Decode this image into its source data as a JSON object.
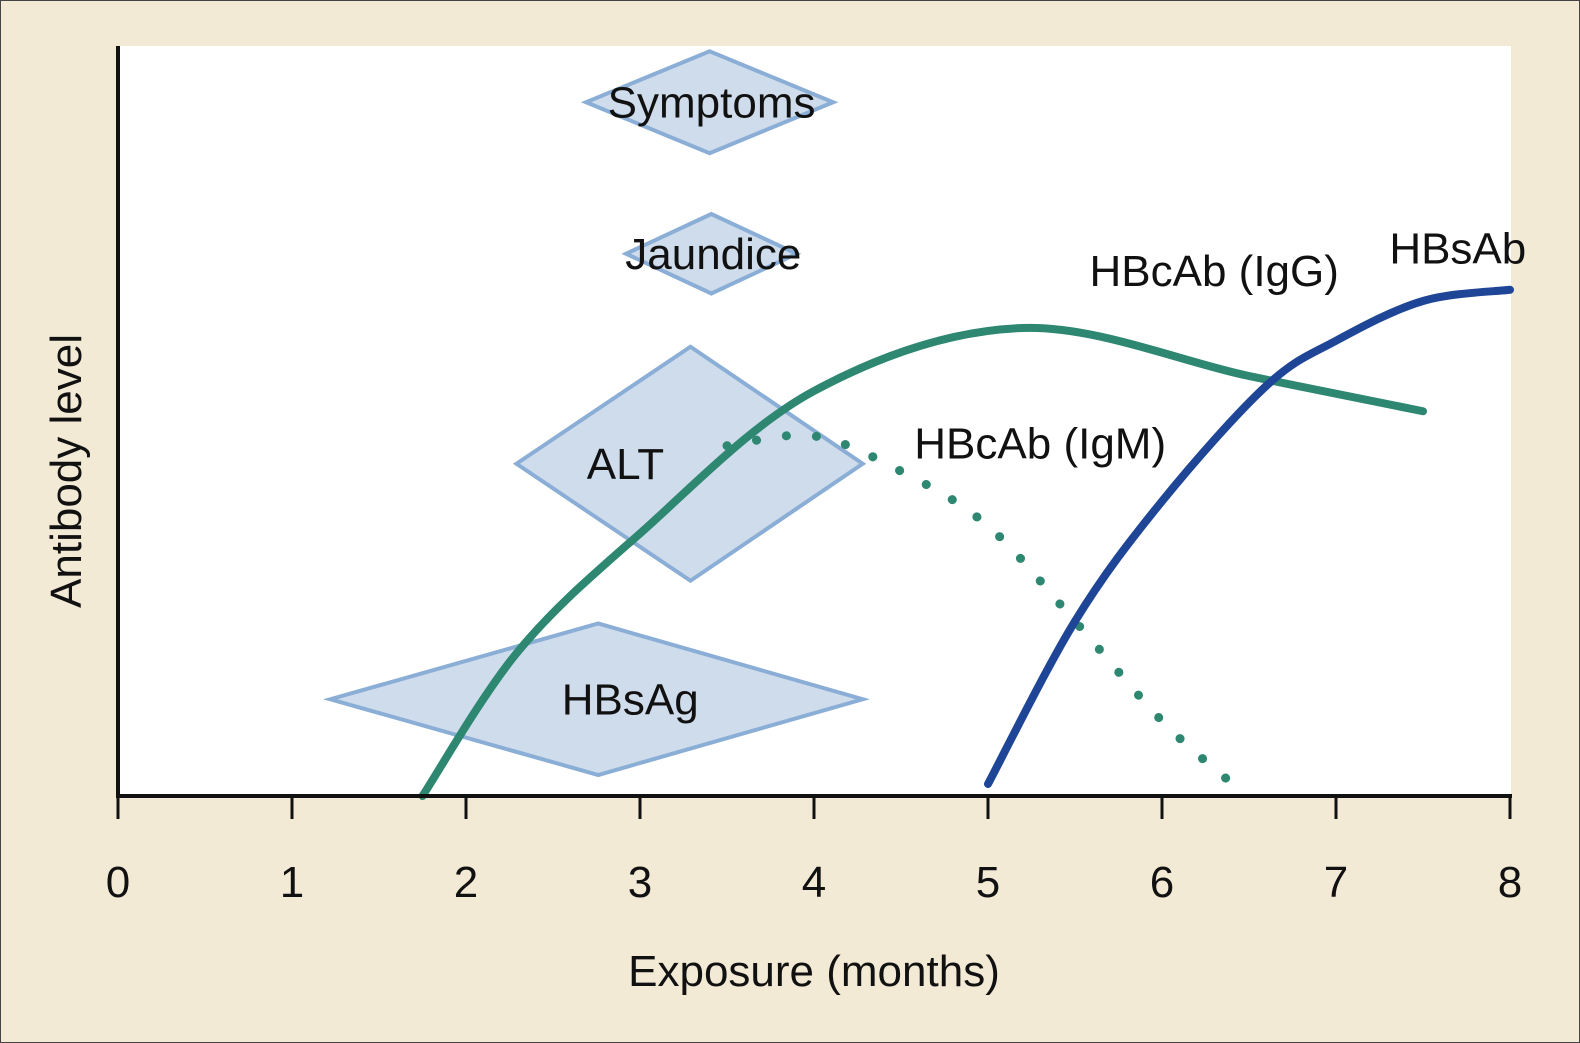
{
  "chart_data": {
    "type": "line",
    "title": "",
    "xlabel": "Exposure (months)",
    "ylabel": "Antibody level",
    "xlim": [
      0,
      8
    ],
    "ylim": [
      0,
      100
    ],
    "x_ticks": [
      "0",
      "1",
      "2",
      "3",
      "4",
      "5",
      "6",
      "7",
      "8"
    ],
    "grid": false,
    "colors": {
      "igg": "#2e8770",
      "igm": "#2e8770",
      "hbsab": "#1f4696",
      "marker_fill": "#cfdcec",
      "marker_stroke": "#8aaed6",
      "background": "#f3ead6"
    },
    "series": [
      {
        "name": "HBcAb (IgG)",
        "style": "solid",
        "color": "#2e8770",
        "points": [
          [
            1.75,
            0
          ],
          [
            2.3,
            19.3
          ],
          [
            3,
            35
          ],
          [
            4,
            54
          ],
          [
            5.2,
            62.4
          ],
          [
            6.5,
            56
          ],
          [
            7.5,
            51.3
          ]
        ]
      },
      {
        "name": "HBcAb (IgM)",
        "style": "dotted",
        "color": "#2e8770",
        "points": [
          [
            3.5,
            46.7
          ],
          [
            4,
            48
          ],
          [
            4.5,
            43.3
          ],
          [
            5,
            36
          ],
          [
            5.5,
            23.3
          ],
          [
            6,
            10
          ],
          [
            6.4,
            1.7
          ]
        ]
      },
      {
        "name": "HBsAb",
        "style": "solid",
        "color": "#1f4696",
        "points": [
          [
            5,
            1.6
          ],
          [
            5.5,
            23.3
          ],
          [
            6,
            39.3
          ],
          [
            6.6,
            54.7
          ],
          [
            7,
            60.7
          ],
          [
            7.5,
            66
          ],
          [
            8,
            67.5
          ]
        ]
      }
    ],
    "series_labels": [
      {
        "text": "HBcAb (IgG)",
        "x": 6.3,
        "y": 70
      },
      {
        "text": "HBcAb (IgM)",
        "x": 5.3,
        "y": 47
      },
      {
        "text": "HBsAb",
        "x": 7.7,
        "y": 73
      }
    ],
    "markers": [
      {
        "label": "Symptoms",
        "center": 3.4,
        "from": 2.69,
        "to": 4.11,
        "level": 92.5,
        "half_height": 6.8
      },
      {
        "label": "Jaundice",
        "center": 3.41,
        "from": 2.92,
        "to": 3.9,
        "level": 72.3,
        "half_height": 5.3
      },
      {
        "label": "ALT",
        "center": 3.29,
        "from": 2.29,
        "to": 4.28,
        "level": 44.3,
        "half_height": 15.6
      },
      {
        "label": "HBsAg",
        "center": 2.76,
        "from": 1.22,
        "to": 4.28,
        "level": 12.9,
        "half_height": 10.1
      }
    ]
  }
}
